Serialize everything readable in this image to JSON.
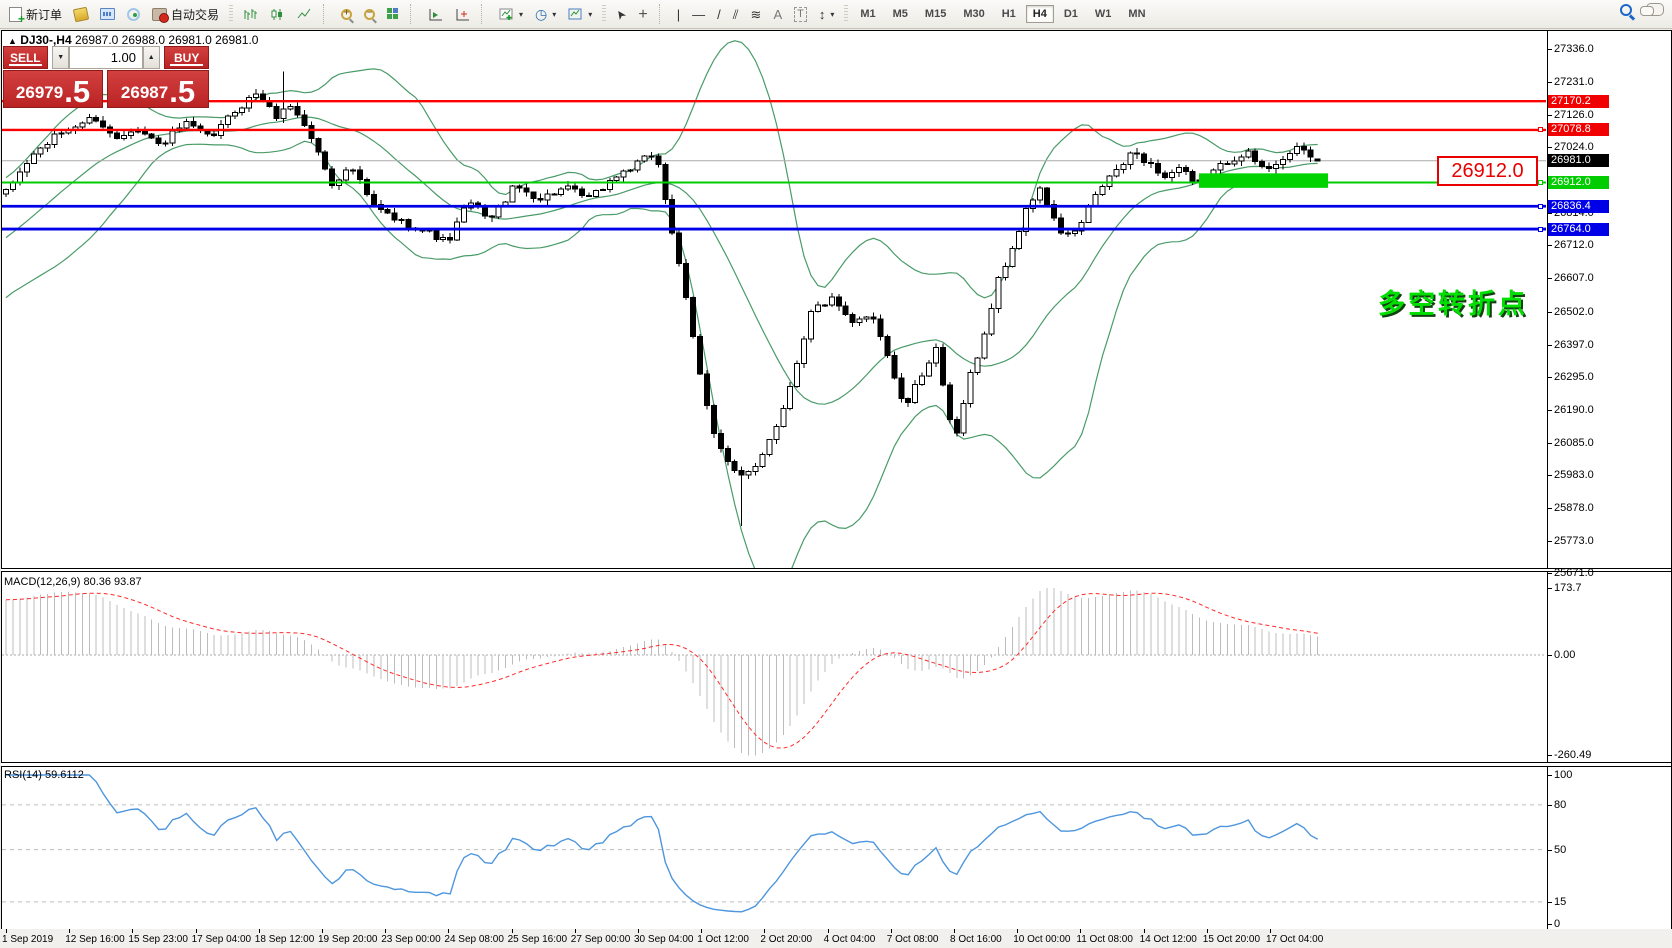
{
  "toolbar": {
    "new_order_label": "新订单",
    "autotrading_label": "自动交易",
    "timeframes": [
      "M1",
      "M5",
      "M15",
      "M30",
      "H1",
      "H4",
      "D1",
      "W1",
      "MN"
    ],
    "active_timeframe": "H4",
    "tool_glyphs": {
      "equidistant_channel": "⫽",
      "fibonacci": "≋",
      "text": "A",
      "text_label": "T",
      "arrows": "↕",
      "crosshair": "+",
      "vline": "|",
      "hline": "—",
      "trendline": "/",
      "cursor": "➤",
      "periods": "◷"
    }
  },
  "chart_title": {
    "collapse": "▲",
    "symbol_period": "DJ30-,H4",
    "quotes": "26987.0 26988.0 26981.0 26981.0"
  },
  "one_click": {
    "sell_label": "SELL",
    "buy_label": "BUY",
    "volume": "1.00",
    "sell_price_int": "26979",
    "sell_price_big": ".5",
    "buy_price_int": "26987",
    "buy_price_big": ".5",
    "spin_down": "▼",
    "spin_up": "▲"
  },
  "annotations": {
    "price_callout": "26912.0",
    "pivot_text": "多空转折点",
    "highlight": {
      "price_top": 26941,
      "price_bottom": 26895,
      "x_start": 1199,
      "x_end": 1328,
      "color": "#00d300"
    }
  },
  "colors": {
    "bull": "#ffffff",
    "bear": "#000000",
    "outline": "#000000",
    "bands": "#4a9b68",
    "macd_hist": "#bcbcbc",
    "macd_signal": "#ff2a2a",
    "rsi_line": "#4e96dd",
    "level_dash": "#bdbdbd",
    "red_line": "#ff0000",
    "blue_line": "#0000e8",
    "green_line": "#00cc00",
    "current_line": "#ababab",
    "panel_red": "#c92a2a"
  },
  "chart_data": [
    {
      "type": "candlestick",
      "symbol": "DJ30-",
      "timeframe": "H4",
      "current_ohlc": {
        "open": 26987.0,
        "high": 26988.0,
        "low": 26981.0,
        "close": 26981.0
      },
      "current_price": 26981.0,
      "y_ticks": [
        "27336.0",
        "27231.0",
        "27126.0",
        "27024.0",
        "26814.0",
        "26712.0",
        "26607.0",
        "26502.0",
        "26397.0",
        "26295.0",
        "26190.0",
        "26085.0",
        "25983.0",
        "25878.0",
        "25773.0",
        "25671.0"
      ],
      "y_tick_values": [
        27336,
        27231,
        27126,
        27024,
        26814,
        26712,
        26607,
        26502,
        26397,
        26295,
        26190,
        26085,
        25983,
        25878,
        25773,
        25671
      ],
      "x_labels": [
        "1 Sep 2019",
        "12 Sep 16:00",
        "15 Sep 23:00",
        "17 Sep 04:00",
        "18 Sep 12:00",
        "19 Sep 20:00",
        "23 Sep 00:00",
        "24 Sep 08:00",
        "25 Sep 16:00",
        "27 Sep 00:00",
        "30 Sep 04:00",
        "1 Oct 12:00",
        "2 Oct 20:00",
        "4 Oct 04:00",
        "7 Oct 08:00",
        "8 Oct 16:00",
        "10 Oct 00:00",
        "11 Oct 08:00",
        "14 Oct 12:00",
        "15 Oct 20:00",
        "17 Oct 04:00"
      ],
      "bars": 190,
      "first_bar_x": 6,
      "bar_spacing": 6.94,
      "price_path_anchors": [
        [
          6,
          26880
        ],
        [
          30,
          26990
        ],
        [
          60,
          27070
        ],
        [
          95,
          27120
        ],
        [
          115,
          27050
        ],
        [
          135,
          27090
        ],
        [
          160,
          27030
        ],
        [
          185,
          27100
        ],
        [
          210,
          27050
        ],
        [
          235,
          27140
        ],
        [
          258,
          27200
        ],
        [
          275,
          27120
        ],
        [
          292,
          27160
        ],
        [
          312,
          27050
        ],
        [
          332,
          26910
        ],
        [
          352,
          26960
        ],
        [
          372,
          26840
        ],
        [
          398,
          26790
        ],
        [
          425,
          26760
        ],
        [
          448,
          26720
        ],
        [
          468,
          26850
        ],
        [
          492,
          26800
        ],
        [
          515,
          26900
        ],
        [
          540,
          26860
        ],
        [
          565,
          26895
        ],
        [
          590,
          26860
        ],
        [
          615,
          26930
        ],
        [
          640,
          26975
        ],
        [
          656,
          27010
        ],
        [
          670,
          26790
        ],
        [
          686,
          26540
        ],
        [
          700,
          26300
        ],
        [
          713,
          26130
        ],
        [
          726,
          26030
        ],
        [
          740,
          25970
        ],
        [
          754,
          26000
        ],
        [
          768,
          26090
        ],
        [
          782,
          26180
        ],
        [
          796,
          26330
        ],
        [
          812,
          26510
        ],
        [
          832,
          26540
        ],
        [
          852,
          26460
        ],
        [
          872,
          26500
        ],
        [
          888,
          26360
        ],
        [
          904,
          26190
        ],
        [
          920,
          26290
        ],
        [
          936,
          26390
        ],
        [
          948,
          26160
        ],
        [
          958,
          26110
        ],
        [
          970,
          26300
        ],
        [
          984,
          26420
        ],
        [
          998,
          26600
        ],
        [
          1012,
          26700
        ],
        [
          1026,
          26820
        ],
        [
          1040,
          26900
        ],
        [
          1052,
          26800
        ],
        [
          1064,
          26740
        ],
        [
          1078,
          26760
        ],
        [
          1092,
          26850
        ],
        [
          1106,
          26920
        ],
        [
          1120,
          26960
        ],
        [
          1134,
          27010
        ],
        [
          1150,
          26970
        ],
        [
          1165,
          26930
        ],
        [
          1180,
          26960
        ],
        [
          1195,
          26900
        ],
        [
          1210,
          26940
        ],
        [
          1228,
          26980
        ],
        [
          1246,
          27010
        ],
        [
          1264,
          26950
        ],
        [
          1282,
          26990
        ],
        [
          1300,
          27020
        ],
        [
          1317,
          26981
        ]
      ],
      "spikes": [
        {
          "x": 285,
          "high": 27265
        },
        {
          "x": 745,
          "low": 25820
        }
      ],
      "prehistory": {
        "from": 26150,
        "to": 26880,
        "bars": 45
      },
      "bollinger": {
        "period": 20,
        "deviation": 2
      },
      "hlines": [
        {
          "price": 27170.2,
          "color": "#ff0000",
          "width": 2.4
        },
        {
          "price": 27078.8,
          "color": "#ff0000",
          "width": 2.4
        },
        {
          "price": 26912.0,
          "color": "#00cc00",
          "width": 2
        },
        {
          "price": 26836.4,
          "color": "#0000e8",
          "width": 2.8
        },
        {
          "price": 26764.0,
          "color": "#0000e8",
          "width": 2.8
        }
      ],
      "price_tags": [
        {
          "text": "27170.2",
          "price": 27170.2,
          "bg": "#f00000",
          "marker": false
        },
        {
          "text": "27078.8",
          "price": 27078.8,
          "bg": "#f00000",
          "marker": true
        },
        {
          "text": "26981.0",
          "price": 26981.0,
          "bg": "#000000",
          "marker": false
        },
        {
          "text": "26912.0",
          "price": 26912.0,
          "bg": "#00cc00",
          "marker": true
        },
        {
          "text": "26836.4",
          "price": 26836.4,
          "bg": "#0000e8",
          "marker": true
        },
        {
          "text": "26764.0",
          "price": 26764.0,
          "bg": "#0000e8",
          "marker": true
        }
      ]
    },
    {
      "type": "macd-histogram",
      "label": "MACD(12,26,9) 80.36 93.87",
      "params": {
        "fast": 12,
        "slow": 26,
        "signal": 9
      },
      "values": {
        "main": 80.36,
        "signal": 93.87
      },
      "y_ticks": [
        "173.7",
        "0.00",
        "-260.49"
      ],
      "y_tick_values": [
        173.7,
        0,
        -260.49
      ],
      "range": {
        "max": 173.7,
        "min": -260.49
      }
    },
    {
      "type": "rsi-line",
      "label": "RSI(14) 59.6112",
      "params": {
        "period": 14
      },
      "value": 59.6112,
      "y_ticks": [
        "100",
        "80",
        "50",
        "15",
        "0"
      ],
      "y_tick_values": [
        100,
        80,
        50,
        15,
        0
      ],
      "levels": [
        80,
        50,
        15
      ]
    }
  ]
}
